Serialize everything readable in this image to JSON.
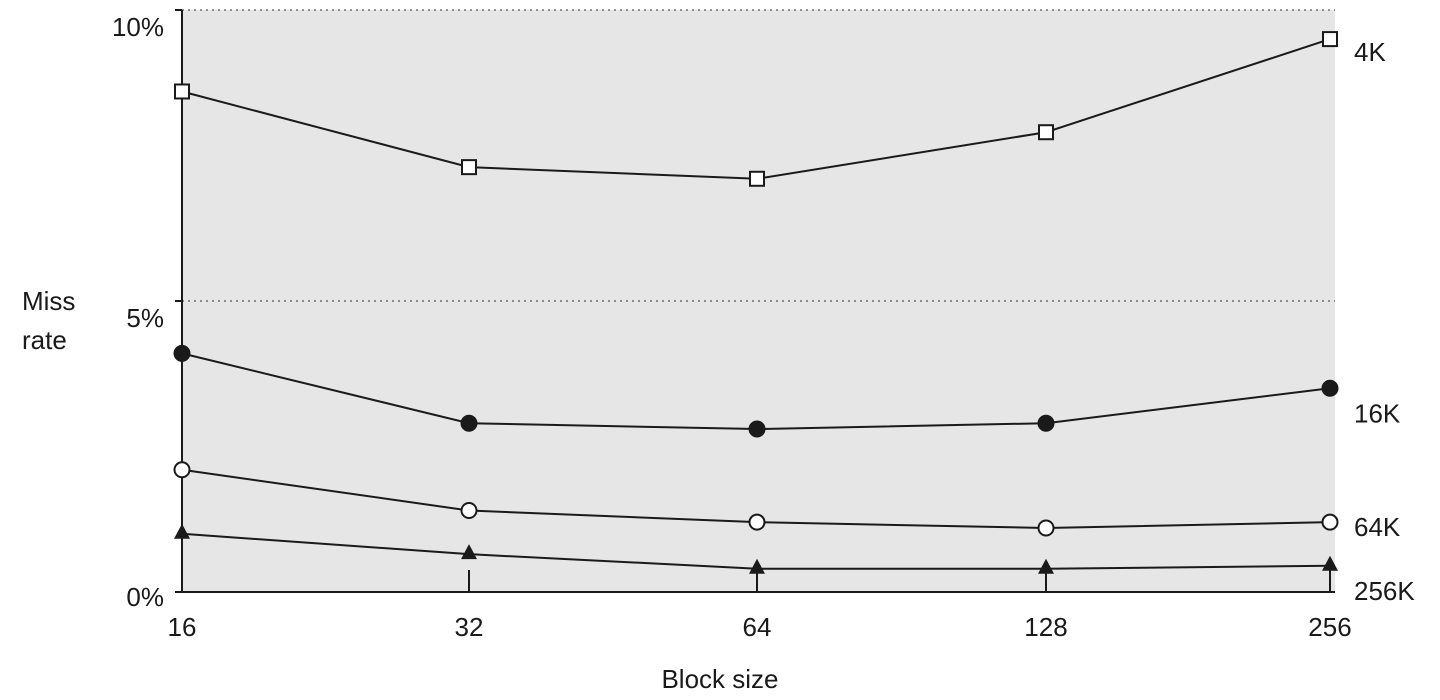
{
  "chart_data": {
    "type": "line",
    "title": "",
    "xlabel": "Block size",
    "ylabel_lines": [
      "Miss",
      "rate"
    ],
    "categories": [
      "16",
      "32",
      "64",
      "128",
      "256"
    ],
    "y_ticks": [
      "0%",
      "5%",
      "10%"
    ],
    "ylim": [
      0,
      10
    ],
    "grid": "dotted horizontal at 5% and 10%",
    "plot_background": "#e6e6e6",
    "line_color": "#1a1a1a",
    "series": [
      {
        "name": "4K",
        "marker": "square-open",
        "values": [
          8.6,
          7.3,
          7.1,
          7.9,
          9.5
        ]
      },
      {
        "name": "16K",
        "marker": "circle-filled",
        "values": [
          4.1,
          2.9,
          2.8,
          2.9,
          3.5
        ]
      },
      {
        "name": "64K",
        "marker": "circle-open",
        "values": [
          2.1,
          1.4,
          1.2,
          1.1,
          1.2
        ]
      },
      {
        "name": "256K",
        "marker": "triangle-filled",
        "values": [
          1.0,
          0.65,
          0.4,
          0.4,
          0.45
        ]
      }
    ]
  }
}
